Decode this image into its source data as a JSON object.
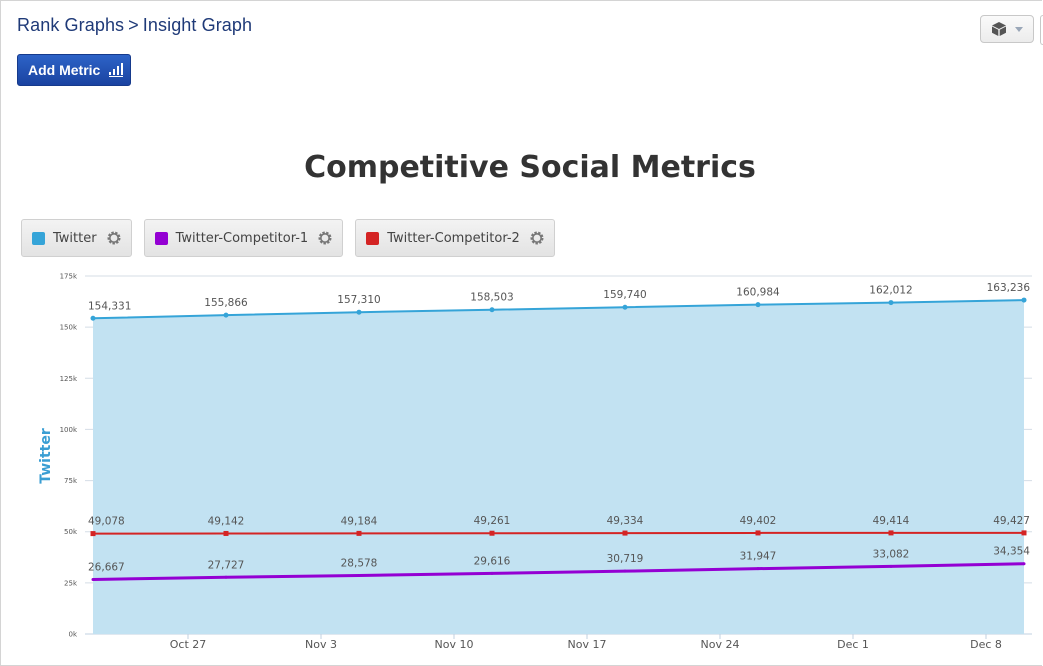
{
  "header": {
    "breadcrumb": [
      "Rank Graphs",
      ">",
      "Insight Graph"
    ],
    "add_metric_label": "Add Metric",
    "add_metric_icon": "bar-chart-icon",
    "settings_menu_icon": "cube-icon"
  },
  "legend": [
    {
      "label": "Twitter",
      "color": "#35a4d8",
      "icon": "gear-icon"
    },
    {
      "label": "Twitter-Competitor-1",
      "color": "#9400d3",
      "icon": "gear-icon"
    },
    {
      "label": "Twitter-Competitor-2",
      "color": "#d42424",
      "icon": "gear-icon"
    }
  ],
  "chart_data": {
    "type": "line",
    "title": "Competitive Social Metrics",
    "ylabel": "Twitter",
    "xlabel": "",
    "ylim": [
      0,
      175000
    ],
    "yticks": [
      0,
      25000,
      50000,
      75000,
      100000,
      125000,
      150000,
      175000
    ],
    "ytick_labels": [
      "0k",
      "25k",
      "50k",
      "75k",
      "100k",
      "125k",
      "150k",
      "175k"
    ],
    "x": [
      "Oct 22",
      "Oct 29",
      "Nov 5",
      "Nov 12",
      "Nov 19",
      "Nov 26",
      "Dec 3",
      "Dec 10"
    ],
    "xtick_labels": [
      "Oct 27",
      "Nov 3",
      "Nov 10",
      "Nov 17",
      "Nov 24",
      "Dec 1",
      "Dec 8"
    ],
    "grid": true,
    "legend_position": "top-left",
    "series": [
      {
        "name": "Twitter",
        "color": "#35a4d8",
        "fill": "#c2e2f2",
        "area": true,
        "values": [
          154331,
          155866,
          157310,
          158503,
          159740,
          160984,
          162012,
          163236
        ],
        "labels": [
          "154,331",
          "155,866",
          "157,310",
          "158,503",
          "159,740",
          "160,984",
          "162,012",
          "163,236"
        ]
      },
      {
        "name": "Twitter-Competitor-1",
        "color": "#9400d3",
        "area": false,
        "values": [
          26667,
          27727,
          28578,
          29616,
          30719,
          31947,
          33082,
          34354
        ],
        "labels": [
          "26,667",
          "27,727",
          "28,578",
          "29,616",
          "30,719",
          "31,947",
          "33,082",
          "34,354"
        ]
      },
      {
        "name": "Twitter-Competitor-2",
        "color": "#d42424",
        "area": false,
        "values": [
          49078,
          49142,
          49184,
          49261,
          49334,
          49402,
          49414,
          49427
        ],
        "labels": [
          "49,078",
          "49,142",
          "49,184",
          "49,261",
          "49,334",
          "49,402",
          "49,414",
          "49,427"
        ]
      }
    ]
  }
}
